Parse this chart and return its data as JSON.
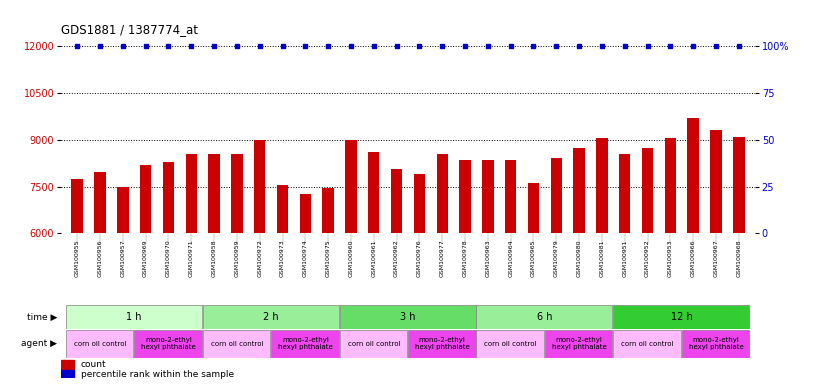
{
  "title": "GDS1881 / 1387774_at",
  "samples": [
    "GSM100955",
    "GSM100956",
    "GSM100957",
    "GSM100969",
    "GSM100970",
    "GSM100971",
    "GSM100958",
    "GSM100959",
    "GSM100972",
    "GSM100973",
    "GSM100974",
    "GSM100975",
    "GSM100960",
    "GSM100961",
    "GSM100962",
    "GSM100976",
    "GSM100977",
    "GSM100978",
    "GSM100963",
    "GSM100964",
    "GSM100965",
    "GSM100979",
    "GSM100980",
    "GSM100981",
    "GSM100951",
    "GSM100952",
    "GSM100953",
    "GSM100966",
    "GSM100967",
    "GSM100968"
  ],
  "values": [
    7750,
    7950,
    7500,
    8200,
    8300,
    8550,
    8550,
    8550,
    9000,
    7550,
    7250,
    7450,
    9000,
    8600,
    8050,
    7900,
    8550,
    8350,
    8350,
    8350,
    7600,
    8400,
    8750,
    9050,
    8550,
    8750,
    9050,
    9700,
    9300,
    9100
  ],
  "ylim_left": [
    6000,
    12000
  ],
  "ylim_right": [
    0,
    100
  ],
  "yticks_left": [
    6000,
    7500,
    9000,
    10500,
    12000
  ],
  "yticks_right": [
    0,
    25,
    50,
    75,
    100
  ],
  "bar_color": "#cc0000",
  "percentile_color": "#0000cc",
  "bar_width": 0.5,
  "time_groups": [
    {
      "label": "1 h",
      "start": 0,
      "end": 5,
      "color": "#ccffcc"
    },
    {
      "label": "2 h",
      "start": 6,
      "end": 11,
      "color": "#99ee99"
    },
    {
      "label": "3 h",
      "start": 12,
      "end": 17,
      "color": "#66dd66"
    },
    {
      "label": "6 h",
      "start": 18,
      "end": 23,
      "color": "#99ee99"
    },
    {
      "label": "12 h",
      "start": 24,
      "end": 29,
      "color": "#33cc33"
    }
  ],
  "agent_groups": [
    {
      "label": "corn oil control",
      "start": 0,
      "end": 2,
      "color": "#ffbbff"
    },
    {
      "label": "mono-2-ethyl\nhexyl phthalate",
      "start": 3,
      "end": 5,
      "color": "#ee44ee"
    },
    {
      "label": "corn oil control",
      "start": 6,
      "end": 8,
      "color": "#ffbbff"
    },
    {
      "label": "mono-2-ethyl\nhexyl phthalate",
      "start": 9,
      "end": 11,
      "color": "#ee44ee"
    },
    {
      "label": "corn oil control",
      "start": 12,
      "end": 14,
      "color": "#ffbbff"
    },
    {
      "label": "mono-2-ethyl\nhexyl phthalate",
      "start": 15,
      "end": 17,
      "color": "#ee44ee"
    },
    {
      "label": "corn oil control",
      "start": 18,
      "end": 20,
      "color": "#ffbbff"
    },
    {
      "label": "mono-2-ethyl\nhexyl phthalate",
      "start": 21,
      "end": 23,
      "color": "#ee44ee"
    },
    {
      "label": "corn oil control",
      "start": 24,
      "end": 26,
      "color": "#ffbbff"
    },
    {
      "label": "mono-2-ethyl\nhexyl phthalate",
      "start": 27,
      "end": 29,
      "color": "#ee44ee"
    }
  ],
  "legend_items": [
    {
      "label": "count",
      "color": "#cc0000"
    },
    {
      "label": "percentile rank within the sample",
      "color": "#0000cc"
    }
  ],
  "plot_bg": "#ffffff",
  "fig_bg": "#ffffff",
  "tick_area_bg": "#dddddd"
}
